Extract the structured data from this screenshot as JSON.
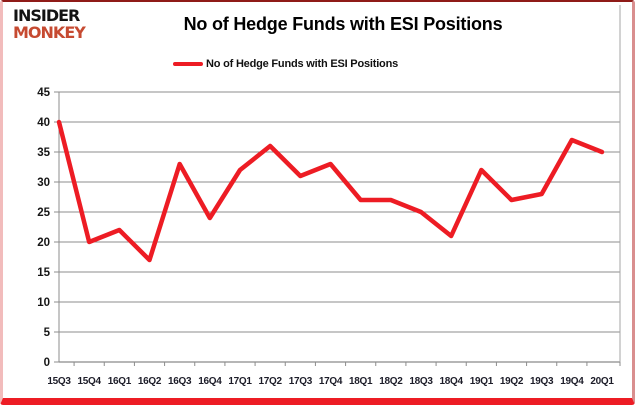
{
  "header": {
    "logo_line1": "INSIDER",
    "logo_line2": "MONKEY",
    "title": "No of Hedge Funds with ESI Positions"
  },
  "legend": {
    "label": "No of Hedge Funds with ESI Positions"
  },
  "colors": {
    "line": "#ed1c24",
    "grid": "#8c8c8c",
    "axis": "#6e6e6e",
    "logo_black": "#131313",
    "logo_red": "#c64a31",
    "frame_bottom": "#ed1c24",
    "tick_text": "#151515"
  },
  "chart_data": {
    "type": "line",
    "title": "No of Hedge Funds with ESI Positions",
    "series": [
      {
        "name": "No of Hedge Funds with ESI Positions",
        "values": [
          40,
          20,
          22,
          17,
          33,
          24,
          32,
          36,
          31,
          33,
          27,
          27,
          25,
          21,
          32,
          27,
          28,
          37,
          35
        ]
      }
    ],
    "categories": [
      "15Q3",
      "15Q4",
      "16Q1",
      "16Q2",
      "16Q3",
      "16Q4",
      "17Q1",
      "17Q2",
      "17Q3",
      "17Q4",
      "18Q1",
      "18Q2",
      "18Q3",
      "18Q4",
      "19Q1",
      "19Q2",
      "19Q3",
      "19Q4",
      "20Q1"
    ],
    "xlabel": "",
    "ylabel": "",
    "ylim": [
      0,
      45
    ],
    "y_ticks": [
      0,
      5,
      10,
      15,
      20,
      25,
      30,
      35,
      40,
      45
    ],
    "grid": true,
    "legend_position": "top-center"
  }
}
